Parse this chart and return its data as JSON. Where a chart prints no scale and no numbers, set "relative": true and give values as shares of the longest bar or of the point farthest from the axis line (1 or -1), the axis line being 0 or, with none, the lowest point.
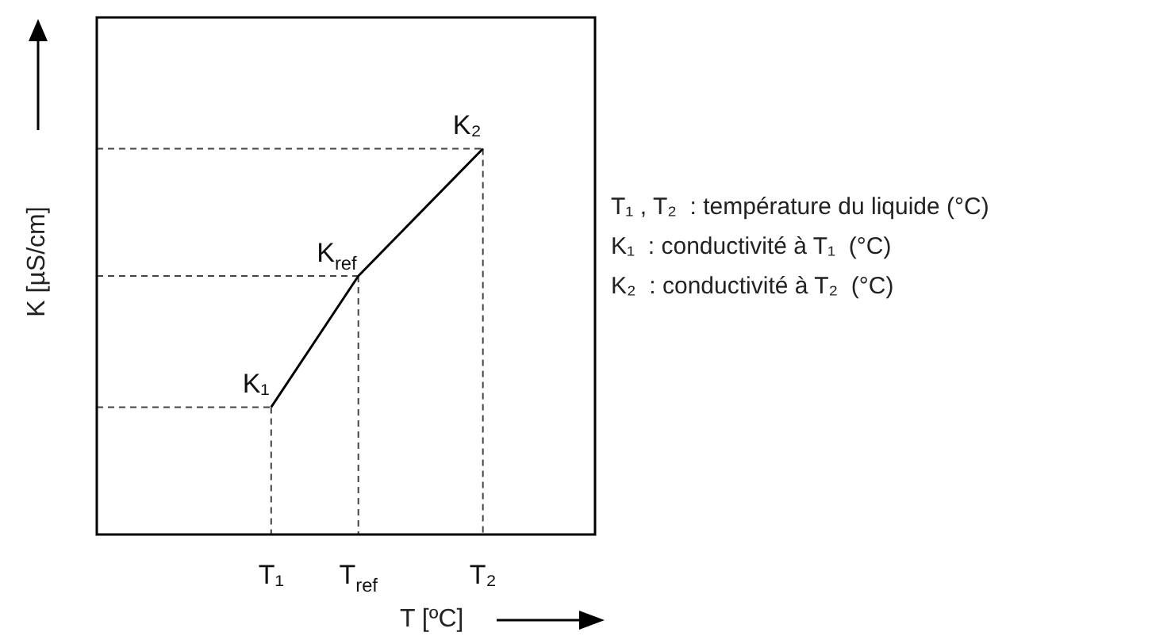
{
  "chart_data": {
    "type": "line",
    "relative": true,
    "xlabel": "T [ºC]",
    "ylabel": "K [µS/cm]",
    "marker": "none",
    "tick_labels": "x",
    "categories": [
      null,
      null,
      null,
      null,
      null,
      null,
      null,
      null,
      null,
      null,
      null,
      null,
      null,
      null,
      "T₁",
      null,
      null,
      null,
      null,
      null,
      null,
      "T$_{ref}$",
      null,
      null,
      null,
      null,
      null,
      null,
      null,
      null,
      null,
      "T₂",
      null,
      null,
      null,
      null,
      null,
      null,
      null,
      null,
      null
    ],
    "series": [
      {
        "color": "#000000",
        "line_style": "solid",
        "values": [
          null,
          null,
          null,
          null,
          null,
          null,
          null,
          null,
          null,
          null,
          null,
          null,
          null,
          null,
          0.33,
          null,
          null,
          null,
          null,
          null,
          null,
          0.67,
          null,
          null,
          null,
          null,
          null,
          null,
          null,
          null,
          null,
          1,
          null,
          null,
          null,
          null,
          null,
          null,
          null,
          null,
          null
        ]
      },
      {
        "color": "#444444",
        "line_style": "dashed",
        "values": [
          0.33,
          0.33,
          0.33,
          0.33,
          0.33,
          0.33,
          0.33,
          0.33,
          0.33,
          0.33,
          0.33,
          0.33,
          0.33,
          0.33,
          0.33,
          null,
          null,
          null,
          null,
          null,
          null,
          null,
          null,
          null,
          null,
          null,
          null,
          null,
          null,
          null,
          null,
          null,
          null,
          null,
          null,
          null,
          null,
          null,
          null,
          null,
          null
        ]
      },
      {
        "color": "#444444",
        "line_style": "dashed",
        "values": [
          0.67,
          0.67,
          0.67,
          0.67,
          0.67,
          0.67,
          0.67,
          0.67,
          0.67,
          0.67,
          0.67,
          0.67,
          0.67,
          0.67,
          0.67,
          0.67,
          0.67,
          0.67,
          0.67,
          0.67,
          0.67,
          0.67,
          null,
          null,
          null,
          null,
          null,
          null,
          null,
          null,
          null,
          null,
          null,
          null,
          null,
          null,
          null,
          null,
          null,
          null,
          null
        ]
      },
      {
        "color": "#444444",
        "line_style": "dashed",
        "values": [
          1,
          1,
          1,
          1,
          1,
          1,
          1,
          1,
          1,
          1,
          1,
          1,
          1,
          1,
          1,
          1,
          1,
          1,
          1,
          1,
          1,
          1,
          1,
          1,
          1,
          1,
          1,
          1,
          1,
          1,
          1,
          1,
          null,
          null,
          null,
          null,
          null,
          null,
          null,
          null,
          null
        ]
      },
      {
        "color": "#444444",
        "line_style": "dashed",
        "x": [
          "T₁",
          "T₁"
        ],
        "values": [
          0.33,
          0
        ]
      },
      {
        "color": "#444444",
        "line_style": "dashed",
        "x": [
          "T$_{ref}$",
          "T$_{ref}$"
        ],
        "values": [
          0.67,
          0
        ]
      },
      {
        "color": "#444444",
        "line_style": "dashed",
        "x": [
          "T₂",
          "T₂"
        ],
        "values": [
          1,
          0
        ]
      }
    ],
    "annotations": [
      {
        "text": "K₁",
        "x": "T₁",
        "y": 0.33
      },
      {
        "text": "K$_{ref}$",
        "x": "T$_{ref}$",
        "y": 0.67
      },
      {
        "text": "K₂",
        "x": "T₂",
        "y": 1
      },
      "T₁ , T₂  : température du liquide (°C)",
      "K₁  : conductivité à T₁  (°C)",
      "K₂  : conductivité à T₂  (°C)"
    ]
  }
}
